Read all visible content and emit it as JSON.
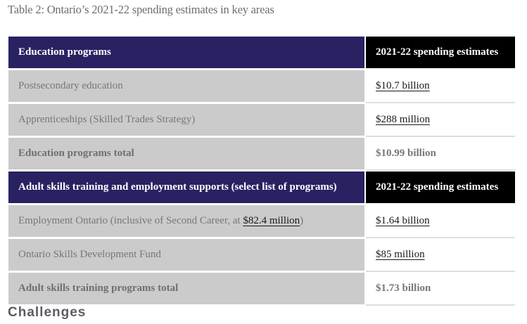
{
  "caption": "Table 2: Ontario’s 2021-22 spending estimates in key areas",
  "sections": [
    {
      "header": {
        "label": "Education programs",
        "value_label": "2021-22 spending estimates"
      },
      "rows": [
        {
          "label": "Postsecondary education",
          "value": "$10.7 billion",
          "value_link": true
        },
        {
          "label": "Apprenticeships (Skilled Trades Strategy)",
          "value": "$288 million",
          "value_link": true
        }
      ],
      "total": {
        "label": "Education programs total",
        "value": "$10.99 billion"
      }
    },
    {
      "header": {
        "label": "Adult skills training and employment supports (select list of programs)",
        "value_label": "2021-22 spending estimates"
      },
      "rows": [
        {
          "label_prefix": "Employment Ontario (inclusive of Second Career, at ",
          "label_link": "$82.4 million",
          "label_suffix": ")",
          "value": "$1.64 billion",
          "value_link": true
        },
        {
          "label": "Ontario Skills Development Fund",
          "value": "$85 million",
          "value_link": true
        }
      ],
      "total": {
        "label": "Adult skills training programs total",
        "value": "$1.73 billion"
      }
    }
  ],
  "next_heading": "Challenges"
}
